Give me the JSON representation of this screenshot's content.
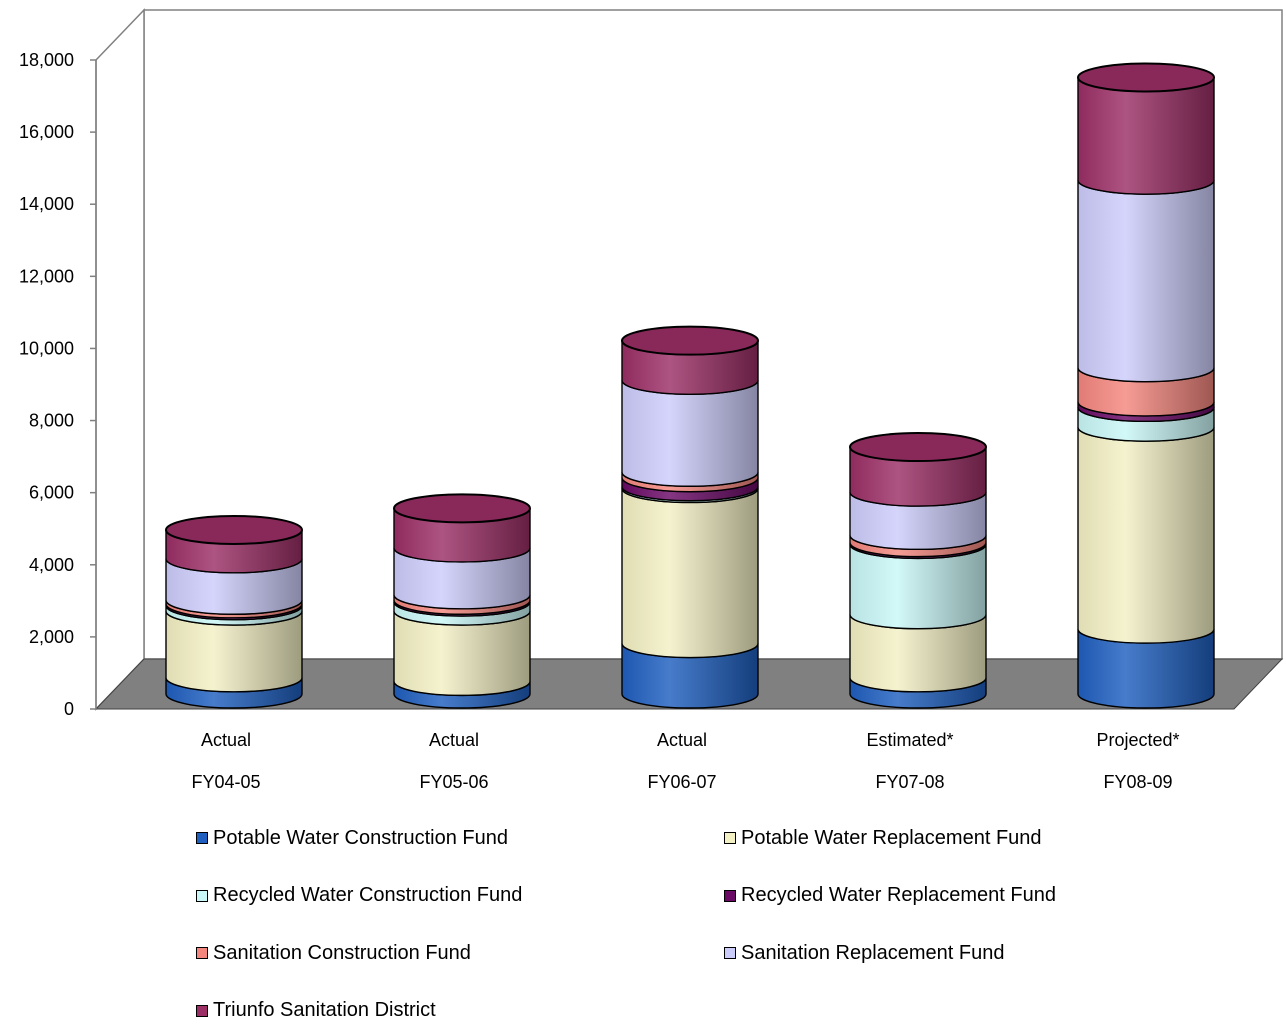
{
  "chart_data": {
    "type": "bar",
    "stacked": true,
    "style": "3d-cylinder",
    "ylim": [
      0,
      18000
    ],
    "yticks": [
      "0",
      "2,000",
      "4,000",
      "6,000",
      "8,000",
      "10,000",
      "12,000",
      "14,000",
      "16,000",
      "18,000"
    ],
    "categories": [
      {
        "line1": "Actual",
        "line2": "FY04-05"
      },
      {
        "line1": "Actual",
        "line2": "FY05-06"
      },
      {
        "line1": "Actual",
        "line2": "FY06-07"
      },
      {
        "line1": "Estimated*",
        "line2": "FY07-08"
      },
      {
        "line1": "Projected*",
        "line2": "FY08-09"
      }
    ],
    "series": [
      {
        "name": "Potable Water Construction Fund",
        "color": "#1f5fbf",
        "values": [
          450,
          350,
          1400,
          450,
          1800
        ]
      },
      {
        "name": "Potable Water Replacement Fund",
        "color": "#f3f0c4",
        "values": [
          1850,
          1950,
          4300,
          1750,
          5600
        ]
      },
      {
        "name": "Recycled Water Construction Fund",
        "color": "#c9f7f7",
        "values": [
          150,
          250,
          50,
          1950,
          550
        ]
      },
      {
        "name": "Recycled Water Replacement Fund",
        "color": "#6a0a66",
        "values": [
          50,
          50,
          250,
          50,
          150
        ]
      },
      {
        "name": "Sanitation Construction Fund",
        "color": "#f4867e",
        "values": [
          100,
          150,
          150,
          200,
          950
        ]
      },
      {
        "name": "Sanitation Replacement Fund",
        "color": "#ccccfb",
        "values": [
          1150,
          1300,
          2550,
          1200,
          5200
        ]
      },
      {
        "name": "Triunfo Sanitation District",
        "color": "#9b2f66",
        "values": [
          800,
          1100,
          1100,
          1250,
          2850
        ]
      }
    ]
  }
}
